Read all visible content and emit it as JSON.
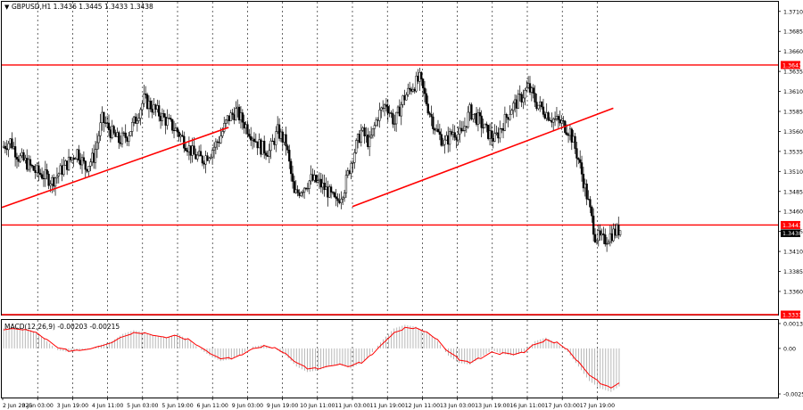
{
  "header": {
    "symbol_caption": "GBPUSD,H1  1.3436 1.3445 1.3433 1.3438"
  },
  "macd": {
    "caption": "MACD(12,26,9) -0.00203 -0.00215"
  },
  "price_axis": {
    "ticks": [
      "1.3710",
      "1.3685",
      "1.3660",
      "1.3635",
      "1.3610",
      "1.3585",
      "1.3560",
      "1.3535",
      "1.3510",
      "1.3485",
      "1.3460",
      "1.3435",
      "1.3410",
      "1.3385",
      "1.3360"
    ],
    "current_price_label": "1.3438",
    "levels": [
      {
        "label": "1.3643",
        "value": 1.3643
      },
      {
        "label": "1.3443",
        "value": 1.3443
      },
      {
        "label": "1.3331",
        "value": 1.3331
      }
    ]
  },
  "macd_axis": {
    "ticks": [
      "0.00137",
      "0.00",
      "-0.00251"
    ]
  },
  "time_axis": {
    "labels": [
      "2 Jun 2025",
      "3 Jun 03:00",
      "3 Jun 19:00",
      "4 Jun 11:00",
      "5 Jun 03:00",
      "5 Jun 19:00",
      "6 Jun 11:00",
      "9 Jun 03:00",
      "9 Jun 19:00",
      "10 Jun 11:00",
      "11 Jun 03:00",
      "11 Jun 19:00",
      "12 Jun 11:00",
      "13 Jun 03:00",
      "13 Jun 19:00",
      "16 Jun 11:00",
      "17 Jun 03:00",
      "17 Jun 19:00"
    ]
  },
  "colors": {
    "level_line": "#ff0000",
    "trend_line": "#ff0000",
    "candles": "#000000",
    "macd_signal": "#ff0000",
    "macd_histogram": "#b0b0b0",
    "price_badge": "#ff0000",
    "current_badge": "#000000"
  },
  "chart_data": {
    "type": "candlestick",
    "symbol": "GBPUSD",
    "timeframe": "H1",
    "ohlc_last": {
      "open": 1.3436,
      "high": 1.3445,
      "low": 1.3433,
      "close": 1.3438
    },
    "ylim": [
      1.3331,
      1.3722
    ],
    "close_path": [
      1.354,
      1.3548,
      1.3528,
      1.352,
      1.351,
      1.3505,
      1.3498,
      1.351,
      1.3522,
      1.3535,
      1.3515,
      1.3528,
      1.3575,
      1.356,
      1.3548,
      1.3555,
      1.3575,
      1.36,
      1.359,
      1.358,
      1.357,
      1.356,
      1.3545,
      1.353,
      1.3525,
      1.3535,
      1.355,
      1.3575,
      1.3585,
      1.357,
      1.3555,
      1.354,
      1.3535,
      1.356,
      1.3545,
      1.348,
      1.349,
      1.35,
      1.3495,
      1.3485,
      1.347,
      1.349,
      1.353,
      1.356,
      1.3545,
      1.358,
      1.3595,
      1.357,
      1.36,
      1.3615,
      1.3625,
      1.359,
      1.356,
      1.3545,
      1.356,
      1.3555,
      1.3585,
      1.3575,
      1.356,
      1.355,
      1.357,
      1.359,
      1.36,
      1.3615,
      1.3595,
      1.3585,
      1.3575,
      1.357,
      1.356,
      1.3525,
      1.348,
      1.343,
      1.3423,
      1.3432,
      1.3438
    ],
    "levels": [
      1.3643,
      1.3443,
      1.3331
    ],
    "trendlines": [
      {
        "from": [
          "2 Jun 2025",
          1.3465
        ],
        "to": [
          "6 Jun 11:00",
          1.3565
        ]
      },
      {
        "from": [
          "11 Jun 03:00",
          1.3466
        ],
        "to": [
          "17 Jun 19:00",
          1.3589
        ]
      }
    ],
    "macd": {
      "caption_values": {
        "main": -0.00203,
        "signal": -0.00215
      },
      "ylim": [
        -0.00251,
        0.00137
      ],
      "histogram": [
        0.0011,
        0.0012,
        0.0011,
        0.0009,
        0.0004,
        -0.0001,
        -0.0002,
        -0.0001,
        0.0,
        0.0002,
        0.0004,
        0.0008,
        0.001,
        0.0009,
        0.0007,
        0.0006,
        0.0008,
        0.0005,
        0.0,
        -0.0004,
        -0.0007,
        -0.0006,
        -0.0003,
        0.0001,
        0.0002,
        0.0,
        -0.0004,
        -0.001,
        -0.0013,
        -0.0012,
        -0.001,
        -0.0009,
        -0.0011,
        -0.0008,
        -0.0002,
        0.0005,
        0.0011,
        0.0013,
        0.0012,
        0.0009,
        0.0004,
        -0.0004,
        -0.0008,
        -0.0009,
        -0.0005,
        -0.0001,
        -0.0003,
        -0.0004,
        -0.0002,
        0.0004,
        0.0006,
        0.0003,
        -0.0002,
        -0.001,
        -0.0018,
        -0.0022,
        -0.0024,
        -0.002
      ]
    }
  }
}
